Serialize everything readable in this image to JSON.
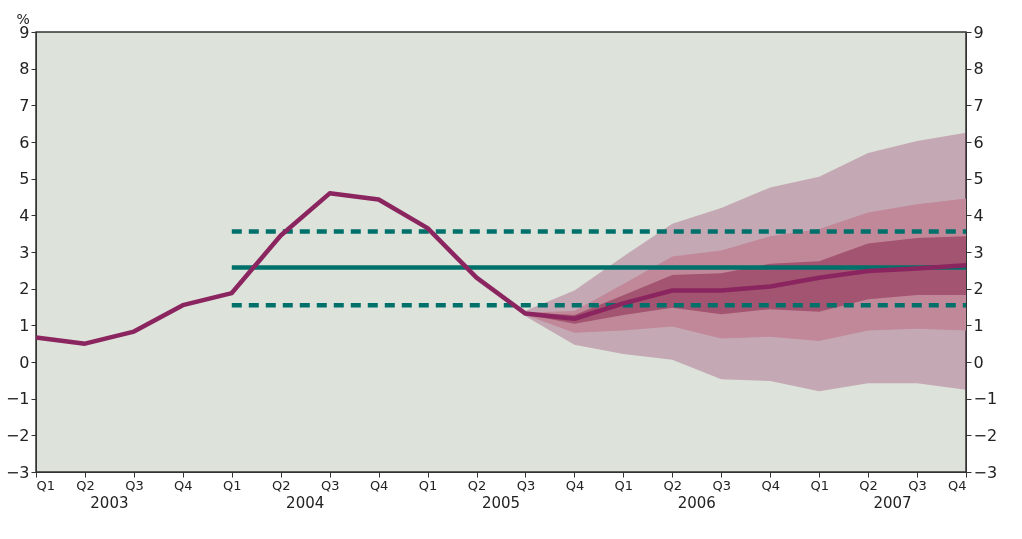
{
  "chart_data": {
    "type": "line",
    "ylabel": "%",
    "categories": [
      "Q1",
      "Q2",
      "Q3",
      "Q4",
      "Q1",
      "Q2",
      "Q3",
      "Q4",
      "Q1",
      "Q2",
      "Q3",
      "Q4",
      "Q1",
      "Q2",
      "Q3",
      "Q4",
      "Q1",
      "Q2",
      "Q3",
      "Q4"
    ],
    "annotations": [
      "2003",
      "2004",
      "2005",
      "2006",
      "2007"
    ],
    "ylim": [
      -3,
      9
    ],
    "yticks": [
      -3,
      -2,
      -1,
      0,
      1,
      2,
      3,
      4,
      5,
      6,
      7,
      8,
      9
    ],
    "y2lim": [
      -3,
      9
    ],
    "y2ticks": [
      -3,
      -2,
      -1,
      0,
      1,
      2,
      3,
      4,
      5,
      6,
      7,
      8,
      9
    ],
    "grid": false,
    "series": [
      {
        "color": "#00706b",
        "line_style": "solid",
        "values": [
          null,
          null,
          null,
          null,
          2.58,
          2.58,
          2.58,
          2.58,
          2.58,
          2.58,
          2.58,
          2.58,
          2.58,
          2.58,
          2.58,
          2.58,
          2.58,
          2.58,
          2.58,
          2.58
        ]
      },
      {
        "color": "#00706b",
        "line_style": "dashed",
        "values": [
          null,
          null,
          null,
          null,
          3.56,
          3.56,
          3.56,
          3.56,
          3.56,
          3.56,
          3.56,
          3.56,
          3.56,
          3.56,
          3.56,
          3.56,
          3.56,
          3.56,
          3.56,
          3.56
        ]
      },
      {
        "color": "#00706b",
        "line_style": "dashed",
        "values": [
          null,
          null,
          null,
          null,
          1.55,
          1.55,
          1.55,
          1.55,
          1.55,
          1.55,
          1.55,
          1.55,
          1.55,
          1.55,
          1.55,
          1.55,
          1.55,
          1.55,
          1.55,
          1.55
        ]
      },
      {
        "color": "#8b2560",
        "line_style": "solid",
        "values": [
          0.67,
          0.5,
          0.83,
          1.55,
          1.88,
          3.45,
          4.6,
          4.43,
          3.65,
          2.3,
          1.32,
          1.18,
          1.6,
          1.95,
          1.95,
          2.06,
          2.3,
          2.48,
          2.55,
          2.64
        ],
        "lower": [
          null,
          null,
          null,
          null,
          null,
          null,
          null,
          null,
          null,
          null,
          1.25,
          0.47,
          0.22,
          0.06,
          -0.47,
          -0.52,
          -0.8,
          -0.58,
          -0.58,
          -0.76
        ],
        "upper": [
          null,
          null,
          null,
          null,
          null,
          null,
          null,
          null,
          null,
          null,
          1.4,
          1.95,
          2.88,
          3.77,
          4.2,
          4.76,
          5.05,
          5.7,
          6.03,
          6.25
        ]
      },
      {
        "color": "#c08898",
        "values": [
          null,
          null,
          null,
          null,
          null,
          null,
          null,
          null,
          null,
          null,
          null,
          null,
          null,
          null,
          null,
          null,
          null,
          null,
          null,
          null
        ],
        "lower": [
          null,
          null,
          null,
          null,
          null,
          null,
          null,
          null,
          null,
          null,
          1.28,
          0.8,
          0.86,
          0.97,
          0.64,
          0.69,
          0.57,
          0.86,
          0.91,
          0.86
        ],
        "upper": [
          null,
          null,
          null,
          null,
          null,
          null,
          null,
          null,
          null,
          null,
          1.35,
          1.39,
          2.13,
          2.88,
          3.04,
          3.43,
          3.63,
          4.08,
          4.3,
          4.46
        ]
      },
      {
        "color": "#a35470",
        "values": [
          null,
          null,
          null,
          null,
          null,
          null,
          null,
          null,
          null,
          null,
          null,
          null,
          null,
          null,
          null,
          null,
          null,
          null,
          null,
          null
        ],
        "lower": [
          null,
          null,
          null,
          null,
          null,
          null,
          null,
          null,
          null,
          null,
          1.3,
          1.04,
          1.28,
          1.48,
          1.3,
          1.44,
          1.37,
          1.71,
          1.83,
          1.83
        ],
        "upper": [
          null,
          null,
          null,
          null,
          null,
          null,
          null,
          null,
          null,
          null,
          1.35,
          1.28,
          1.82,
          2.37,
          2.42,
          2.68,
          2.75,
          3.23,
          3.38,
          3.43
        ]
      }
    ]
  }
}
